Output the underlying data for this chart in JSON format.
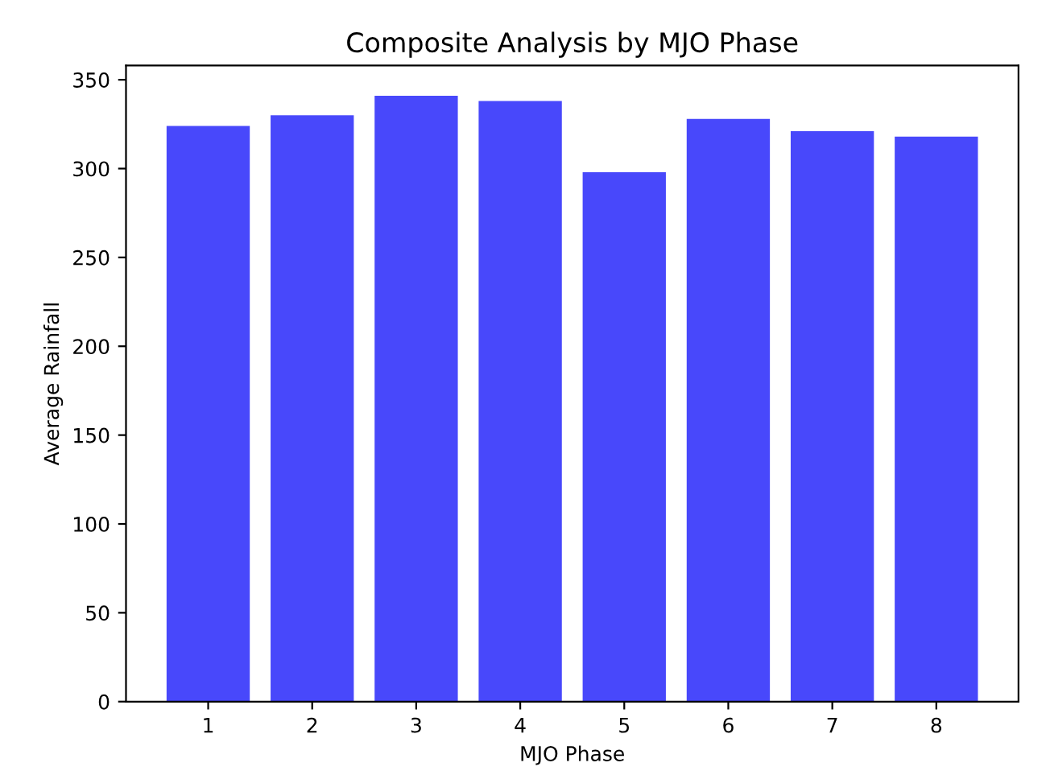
{
  "chart_data": {
    "type": "bar",
    "title": "Composite Analysis by MJO Phase",
    "xlabel": "MJO Phase",
    "ylabel": "Average Rainfall",
    "categories": [
      "1",
      "2",
      "3",
      "4",
      "5",
      "6",
      "7",
      "8"
    ],
    "values": [
      324,
      330,
      341,
      338,
      298,
      328,
      321,
      318
    ],
    "color": "#4848fb",
    "ylim": [
      0,
      358
    ],
    "yticks": [
      0,
      50,
      100,
      150,
      200,
      250,
      300,
      350
    ],
    "grid": false
  }
}
